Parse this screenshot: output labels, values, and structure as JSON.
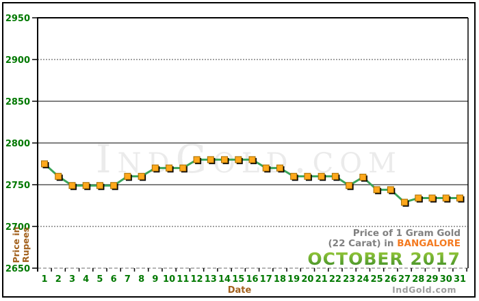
{
  "watermark_text": "IndGold.com",
  "branding_text": "IndGold.com",
  "title": {
    "line1": "Price of 1 Gram Gold",
    "line2_prefix": "(22 Carat) in ",
    "city": "BANGALORE",
    "period": "OCTOBER 2017"
  },
  "axes": {
    "y_title_line1": "Price in",
    "y_title_line2": "Rupees",
    "x_title": "Date"
  },
  "chart_data": {
    "type": "line",
    "title": "Price of 1 Gram Gold (22 Carat) in BANGALORE - OCTOBER 2017",
    "xlabel": "Date",
    "ylabel": "Price in Rupees",
    "x": [
      1,
      2,
      3,
      4,
      5,
      6,
      7,
      8,
      9,
      10,
      11,
      12,
      13,
      14,
      15,
      16,
      17,
      18,
      19,
      20,
      21,
      22,
      23,
      24,
      25,
      26,
      27,
      28,
      29,
      30,
      31
    ],
    "values": [
      2775,
      2760,
      2749,
      2749,
      2749,
      2749,
      2760,
      2760,
      2770,
      2770,
      2770,
      2780,
      2780,
      2780,
      2780,
      2780,
      2770,
      2770,
      2760,
      2760,
      2760,
      2760,
      2749,
      2759,
      2744,
      2744,
      2729,
      2734,
      2734,
      2734,
      2734
    ],
    "ylim": [
      2650,
      2950
    ],
    "y_ticks": [
      2650,
      2700,
      2750,
      2800,
      2850,
      2900,
      2950
    ],
    "grid": {
      "solid": [
        2750,
        2800,
        2850
      ],
      "dotted": [
        2700,
        2900
      ],
      "dashed": [
        2650
      ],
      "top_border": 2950
    },
    "legend": "none",
    "colors": {
      "line": "#3aa45a",
      "marker_fill": "#ffa81c",
      "marker_border": "#a36d00",
      "marker_shadow": "#000000",
      "grid_solid": "#808080",
      "grid_dotted": "#444444",
      "grid_dashed": "#888888",
      "axis_black": "#000000",
      "tick_label_green": "#007800",
      "side_label_brown": "#a2601c",
      "title_gray": "#808080",
      "city_orange": "#f47a20",
      "period_green": "#4a9a2e",
      "watermark_gray": "#ebebeb",
      "branding_gray": "#9e9e9e"
    }
  }
}
